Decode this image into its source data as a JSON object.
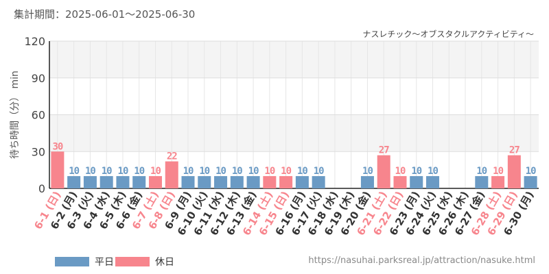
{
  "period_label": "集計期間：2025-06-01～2025-06-30",
  "source_url": "https://nasuhai.parksreal.jp/attraction/nasuke.html",
  "colors": {
    "weekday": "#6a9ac4",
    "holiday": "#f7858d"
  },
  "legend": [
    {
      "label": "平日",
      "color_key": "weekday"
    },
    {
      "label": "休日",
      "color_key": "holiday"
    }
  ],
  "chart_data": {
    "type": "bar",
    "title": "ナスレチック～オブスタクルアクティビティ～",
    "ylabel": "待ち時間（分） min",
    "ylim": [
      0,
      120
    ],
    "yticks": [
      0,
      30,
      60,
      90,
      120
    ],
    "grid": true,
    "categories": [
      "6-1 (日)",
      "6-2 (月)",
      "6-3 (火)",
      "6-4 (水)",
      "6-5 (木)",
      "6-6 (金)",
      "6-7 (土)",
      "6-8 (日)",
      "6-9 (月)",
      "6-10 (火)",
      "6-11 (水)",
      "6-12 (木)",
      "6-13 (金)",
      "6-14 (土)",
      "6-15 (日)",
      "6-16 (月)",
      "6-17 (火)",
      "6-18 (水)",
      "6-19 (木)",
      "6-20 (金)",
      "6-21 (土)",
      "6-22 (日)",
      "6-23 (月)",
      "6-24 (火)",
      "6-25 (水)",
      "6-26 (木)",
      "6-27 (金)",
      "6-28 (土)",
      "6-29 (日)",
      "6-30 (月)"
    ],
    "values": [
      30,
      10,
      10,
      10,
      10,
      10,
      10,
      22,
      10,
      10,
      10,
      10,
      10,
      10,
      10,
      10,
      10,
      null,
      null,
      10,
      27,
      10,
      10,
      10,
      null,
      null,
      10,
      10,
      27,
      10
    ],
    "day_type": [
      "holiday",
      "weekday",
      "weekday",
      "weekday",
      "weekday",
      "weekday",
      "holiday",
      "holiday",
      "weekday",
      "weekday",
      "weekday",
      "weekday",
      "weekday",
      "holiday",
      "holiday",
      "weekday",
      "weekday",
      "weekday",
      "weekday",
      "weekday",
      "holiday",
      "holiday",
      "weekday",
      "weekday",
      "weekday",
      "weekday",
      "weekday",
      "holiday",
      "holiday",
      "weekday"
    ]
  }
}
